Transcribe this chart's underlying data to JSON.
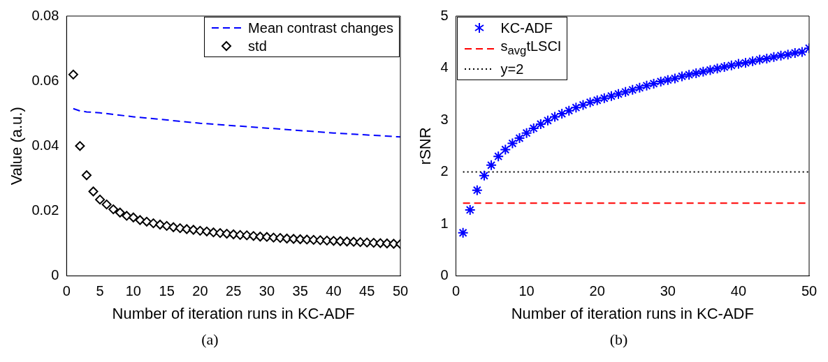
{
  "chart_data": [
    {
      "type": "line",
      "xlabel": "Number of iteration runs in KC-ADF",
      "ylabel": "Value (a.u.)",
      "xlim": [
        0,
        50
      ],
      "xticks": [
        0,
        5,
        10,
        15,
        20,
        25,
        30,
        35,
        40,
        45,
        50
      ],
      "ylim": [
        0,
        0.08
      ],
      "yticks": [
        0,
        0.02,
        0.04,
        0.06,
        0.08
      ],
      "grid": false,
      "legend": "top right",
      "annotations": [
        "(a)"
      ],
      "series": [
        {
          "name": "Mean contrast changes",
          "type": "line",
          "color": "#0000ff",
          "line_style": "dashed",
          "marker": "none",
          "x": [
            1,
            2,
            3,
            5,
            10,
            20,
            30,
            40,
            50
          ],
          "values": [
            0.0515,
            0.0508,
            0.0505,
            0.0502,
            0.049,
            0.047,
            0.0455,
            0.044,
            0.0428
          ]
        },
        {
          "name": "std",
          "type": "scatter",
          "color": "#000000",
          "marker": "diamond",
          "x": [
            1,
            2,
            3,
            4,
            5,
            6,
            7,
            8,
            9,
            10,
            11,
            12,
            13,
            14,
            15,
            16,
            17,
            18,
            19,
            20,
            21,
            22,
            23,
            24,
            25,
            26,
            27,
            28,
            29,
            30,
            31,
            32,
            33,
            34,
            35,
            36,
            37,
            38,
            39,
            40,
            41,
            42,
            43,
            44,
            45,
            46,
            47,
            48,
            49,
            50
          ],
          "values": [
            0.062,
            0.04,
            0.031,
            0.026,
            0.0235,
            0.022,
            0.0205,
            0.0195,
            0.0185,
            0.018,
            0.0172,
            0.0167,
            0.0162,
            0.0158,
            0.0154,
            0.015,
            0.0147,
            0.0144,
            0.0142,
            0.0139,
            0.0137,
            0.0134,
            0.0132,
            0.013,
            0.0128,
            0.0126,
            0.0125,
            0.0123,
            0.0121,
            0.012,
            0.0118,
            0.0117,
            0.0115,
            0.0114,
            0.0113,
            0.0112,
            0.0111,
            0.011,
            0.0109,
            0.0108,
            0.0107,
            0.0106,
            0.0105,
            0.0104,
            0.0103,
            0.0102,
            0.0101,
            0.01,
            0.0099,
            0.0098
          ]
        }
      ]
    },
    {
      "type": "line",
      "xlabel": "Number of iteration runs in KC-ADF",
      "ylabel": "rSNR",
      "xlim": [
        0,
        50
      ],
      "xticks": [
        0,
        10,
        20,
        30,
        40,
        50
      ],
      "ylim": [
        0,
        5
      ],
      "yticks": [
        0,
        1,
        2,
        3,
        4,
        5
      ],
      "grid": false,
      "legend": "top left",
      "annotations": [
        "(b)"
      ],
      "series": [
        {
          "name": "KC-ADF",
          "type": "scatter",
          "color": "#0000ff",
          "marker": "cross",
          "x": [
            1,
            2,
            3,
            4,
            5,
            6,
            7,
            8,
            9,
            10,
            11,
            12,
            13,
            14,
            15,
            16,
            17,
            18,
            19,
            20,
            21,
            22,
            23,
            24,
            25,
            26,
            27,
            28,
            29,
            30,
            31,
            32,
            33,
            34,
            35,
            36,
            37,
            38,
            39,
            40,
            41,
            42,
            43,
            44,
            45,
            46,
            47,
            48,
            49,
            50
          ],
          "values": [
            0.83,
            1.27,
            1.65,
            1.93,
            2.13,
            2.3,
            2.43,
            2.55,
            2.65,
            2.75,
            2.84,
            2.92,
            2.99,
            3.06,
            3.12,
            3.18,
            3.24,
            3.29,
            3.34,
            3.38,
            3.42,
            3.46,
            3.5,
            3.54,
            3.58,
            3.62,
            3.66,
            3.7,
            3.74,
            3.77,
            3.8,
            3.84,
            3.87,
            3.9,
            3.93,
            3.96,
            3.99,
            4.02,
            4.05,
            4.08,
            4.1,
            4.13,
            4.16,
            4.18,
            4.21,
            4.24,
            4.26,
            4.29,
            4.31,
            4.38
          ]
        },
        {
          "name": "s$_{avg}$tLSCI",
          "type": "line",
          "color": "#ff0000",
          "line_style": "dashed",
          "marker": "none",
          "x": [
            1,
            50
          ],
          "values": [
            1.4,
            1.4
          ]
        },
        {
          "name": "y=2",
          "type": "line",
          "color": "#000000",
          "line_style": "dotted",
          "marker": "none",
          "x": [
            1,
            50
          ],
          "values": [
            2,
            2
          ]
        }
      ]
    }
  ]
}
